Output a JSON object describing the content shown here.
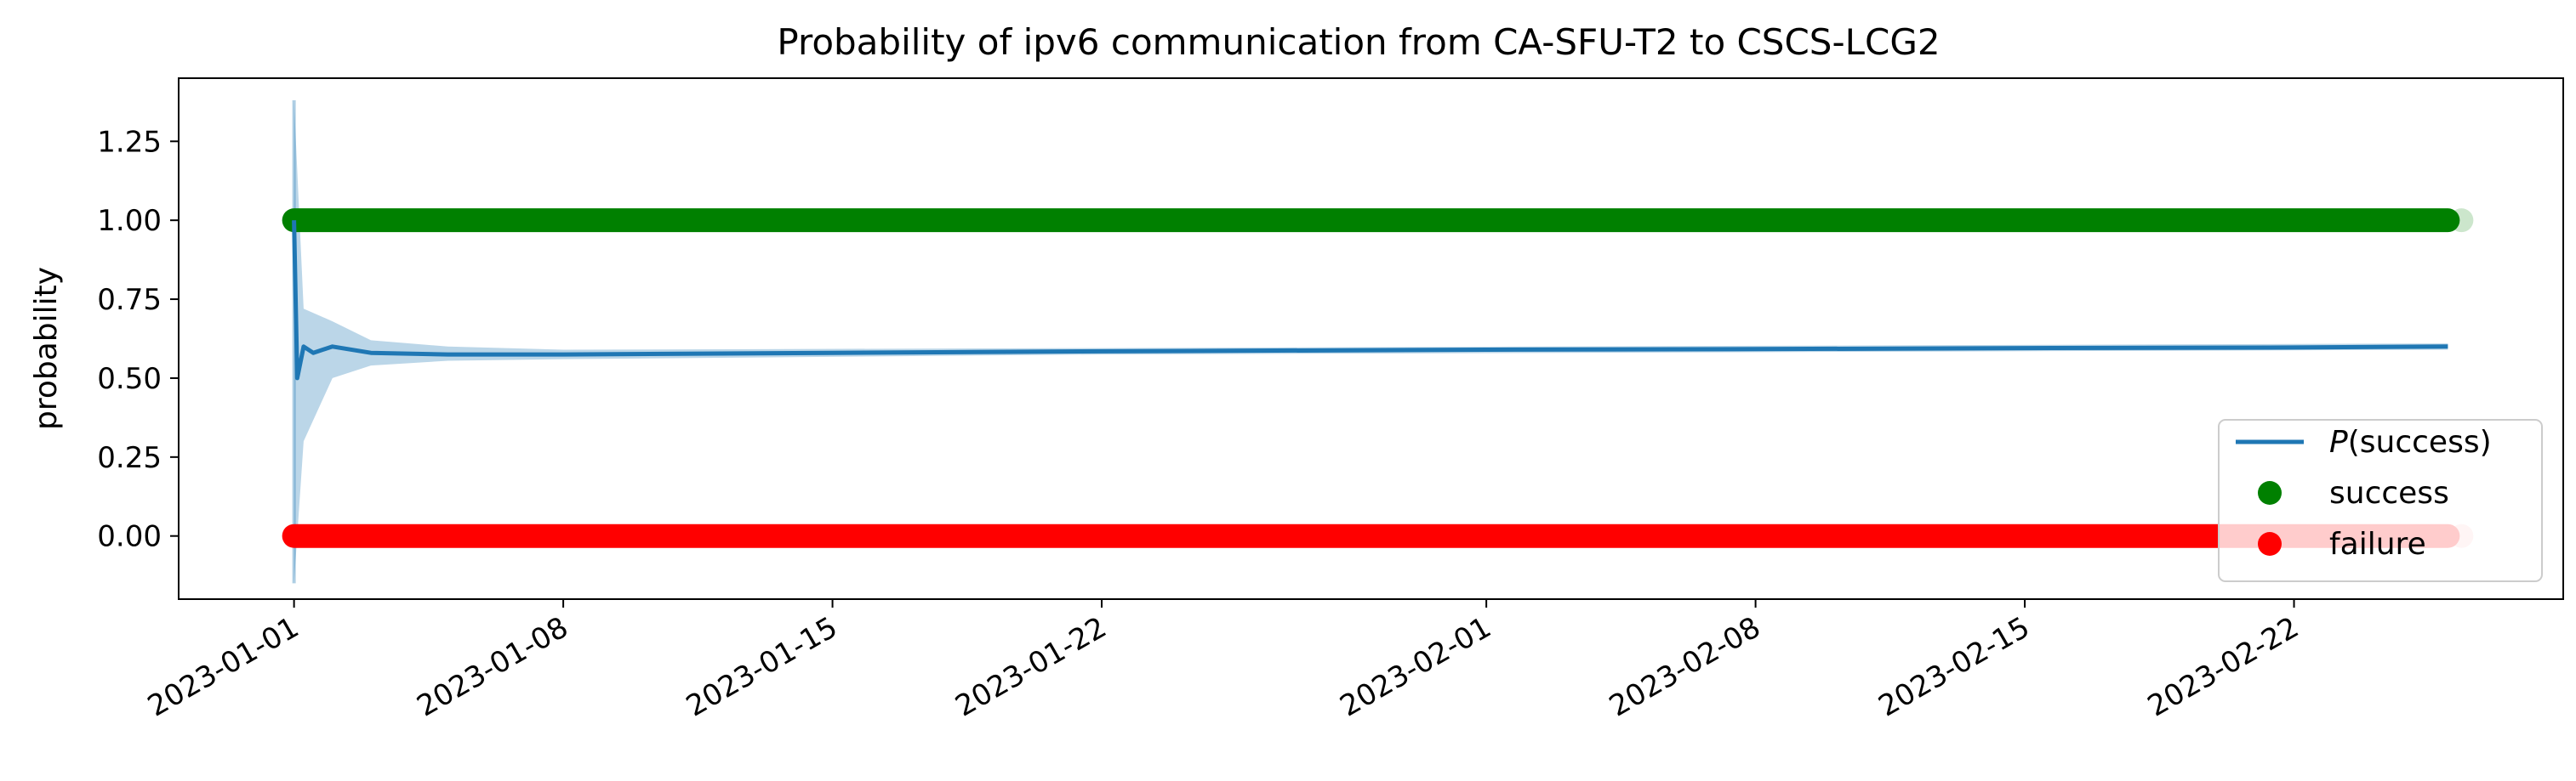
{
  "chart_data": {
    "type": "line",
    "title": "Probability of ipv6 communication from CA-SFU-T2 to CSCS-LCG2",
    "xlabel": "",
    "ylabel": "probability",
    "x_ticks": [
      "2023-01-01",
      "2023-01-08",
      "2023-01-15",
      "2023-01-22",
      "2023-02-01",
      "2023-02-08",
      "2023-02-15",
      "2023-02-22"
    ],
    "x_range": [
      "2022-12-29",
      "2023-03-01"
    ],
    "ylim": [
      -0.2,
      1.45
    ],
    "y_ticks": [
      "0.00",
      "0.25",
      "0.50",
      "0.75",
      "1.00",
      "1.25"
    ],
    "series": [
      {
        "name": "P(success)",
        "legend_label_italic": "P",
        "legend_label_rest": "(success)",
        "color": "#1f77b4",
        "points": [
          [
            "2023-01-01T00:00",
            1.0
          ],
          [
            "2023-01-01T02:00",
            0.5
          ],
          [
            "2023-01-01T06:00",
            0.6
          ],
          [
            "2023-01-01T12:00",
            0.58
          ],
          [
            "2023-01-02T00:00",
            0.6
          ],
          [
            "2023-01-03T00:00",
            0.58
          ],
          [
            "2023-01-05T00:00",
            0.575
          ],
          [
            "2023-01-08T00:00",
            0.575
          ],
          [
            "2023-01-15T00:00",
            0.58
          ],
          [
            "2023-01-22T00:00",
            0.585
          ],
          [
            "2023-02-01T00:00",
            0.59
          ],
          [
            "2023-02-08T00:00",
            0.592
          ],
          [
            "2023-02-15T00:00",
            0.595
          ],
          [
            "2023-02-22T00:00",
            0.597
          ],
          [
            "2023-02-26T00:00",
            0.6
          ]
        ],
        "band_upper": [
          [
            "2023-01-01T00:00",
            1.38
          ],
          [
            "2023-01-01T06:00",
            0.72
          ],
          [
            "2023-01-02T00:00",
            0.68
          ],
          [
            "2023-01-03T00:00",
            0.62
          ],
          [
            "2023-01-05T00:00",
            0.6
          ],
          [
            "2023-01-08T00:00",
            0.59
          ],
          [
            "2023-01-22T00:00",
            0.595
          ],
          [
            "2023-02-26T00:00",
            0.61
          ]
        ],
        "band_lower": [
          [
            "2023-01-01T00:00",
            -0.15
          ],
          [
            "2023-01-01T06:00",
            0.3
          ],
          [
            "2023-01-02T00:00",
            0.5
          ],
          [
            "2023-01-03T00:00",
            0.54
          ],
          [
            "2023-01-05T00:00",
            0.555
          ],
          [
            "2023-01-08T00:00",
            0.56
          ],
          [
            "2023-01-22T00:00",
            0.575
          ],
          [
            "2023-02-26T00:00",
            0.59
          ]
        ]
      },
      {
        "name": "success",
        "color": "#008000",
        "y": 1.0,
        "x_start": "2023-01-01",
        "x_end": "2023-02-26"
      },
      {
        "name": "failure",
        "color": "#ff0000",
        "y": 0.0,
        "x_start": "2023-01-01",
        "x_end": "2023-02-26"
      }
    ],
    "legend": {
      "placement": "lower-right",
      "entries": [
        "P(success)",
        "success",
        "failure"
      ]
    }
  }
}
